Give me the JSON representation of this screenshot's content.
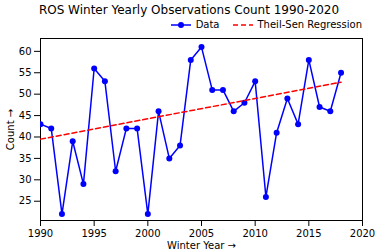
{
  "chart_data": {
    "type": "line",
    "title": "ROS Winter Yearly Observations Count 1990-2020",
    "x_label": "Winter Year",
    "y_label": "Count",
    "x": [
      1990,
      1991,
      1992,
      1993,
      1994,
      1995,
      1996,
      1997,
      1998,
      1999,
      2000,
      2001,
      2002,
      2003,
      2004,
      2005,
      2006,
      2007,
      2008,
      2009,
      2010,
      2011,
      2012,
      2013,
      2014,
      2015,
      2016,
      2017,
      2018
    ],
    "series": [
      {
        "name": "Data",
        "color": "#0000ff",
        "marker": "o",
        "line_style": "solid",
        "values": [
          43,
          42,
          22,
          39,
          29,
          56,
          53,
          32,
          42,
          42,
          22,
          46,
          35,
          38,
          58,
          61,
          51,
          51,
          46,
          48,
          53,
          26,
          41,
          49,
          43,
          58,
          47,
          46,
          55
        ]
      },
      {
        "name": "Theil-Sen Regression",
        "color": "#ff0000",
        "line_style": "dashed",
        "x": [
          1990,
          2018
        ],
        "values": [
          39.5,
          52.8
        ]
      }
    ],
    "xlim": [
      1990,
      2020
    ],
    "xticks": [
      1990,
      1995,
      2000,
      2005,
      2010,
      2015,
      2020
    ],
    "ylim": [
      20.5,
      63
    ],
    "yticks": [
      25,
      30,
      35,
      40,
      45,
      50,
      55,
      60
    ],
    "grid": false,
    "legend": "top"
  }
}
